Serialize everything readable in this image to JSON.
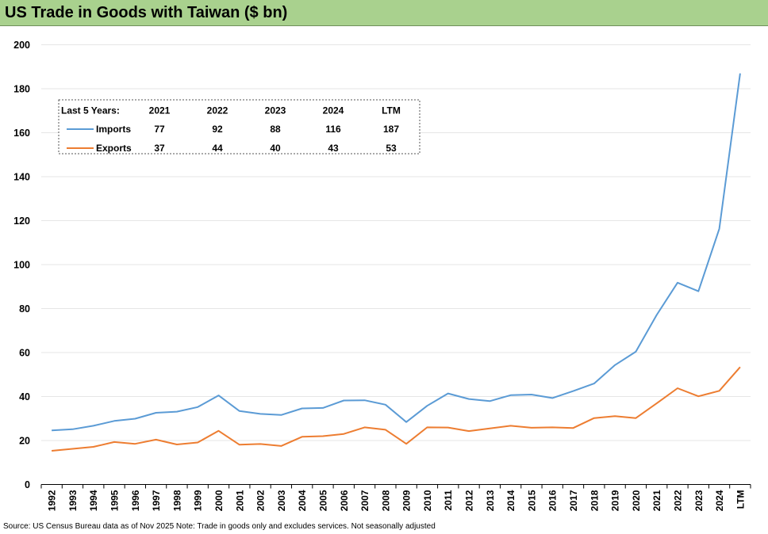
{
  "title": "US Trade in Goods with Taiwan ($ bn)",
  "source": "Source: US Census Bureau data as of Nov 2025 Note: Trade in goods only and excludes services. Not seasonally adjusted",
  "chart_data": {
    "type": "line",
    "title": "US Trade in Goods with Taiwan ($ bn)",
    "xlabel": "",
    "ylabel": "",
    "ylim": [
      0,
      200
    ],
    "yticks": [
      0,
      20,
      40,
      60,
      80,
      100,
      120,
      140,
      160,
      180,
      200
    ],
    "grid": true,
    "categories": [
      "1992",
      "1993",
      "1994",
      "1995",
      "1996",
      "1997",
      "1998",
      "1999",
      "2000",
      "2001",
      "2002",
      "2003",
      "2004",
      "2005",
      "2006",
      "2007",
      "2008",
      "2009",
      "2010",
      "2011",
      "2012",
      "2013",
      "2014",
      "2015",
      "2016",
      "2017",
      "2018",
      "2019",
      "2020",
      "2021",
      "2022",
      "2023",
      "2024",
      "LTM"
    ],
    "series": [
      {
        "name": "Imports",
        "color": "#5b9bd5",
        "values": [
          24.6,
          25.1,
          26.7,
          28.9,
          29.9,
          32.6,
          33.1,
          35.2,
          40.5,
          33.4,
          32.1,
          31.6,
          34.6,
          34.8,
          38.2,
          38.3,
          36.3,
          28.4,
          35.8,
          41.4,
          38.9,
          37.9,
          40.6,
          40.9,
          39.3,
          42.5,
          45.9,
          54.3,
          60.4,
          77.1,
          91.8,
          87.9,
          116.3,
          187.0
        ]
      },
      {
        "name": "Exports",
        "color": "#ed7d31",
        "values": [
          15.3,
          16.2,
          17.1,
          19.3,
          18.5,
          20.4,
          18.2,
          19.1,
          24.4,
          18.1,
          18.4,
          17.5,
          21.7,
          22.0,
          23.0,
          26.0,
          24.9,
          18.5,
          26.0,
          25.9,
          24.3,
          25.5,
          26.7,
          25.8,
          26.0,
          25.7,
          30.2,
          31.1,
          30.2,
          36.9,
          43.8,
          40.1,
          42.6,
          53.4
        ]
      }
    ],
    "legend_table": {
      "header": "Last 5 Years:",
      "columns": [
        "2021",
        "2022",
        "2023",
        "2024",
        "LTM"
      ],
      "rows": [
        {
          "name": "Imports",
          "color": "#5b9bd5",
          "values": [
            "77",
            "92",
            "88",
            "116",
            "187"
          ]
        },
        {
          "name": "Exports",
          "color": "#ed7d31",
          "values": [
            "37",
            "44",
            "40",
            "43",
            "53"
          ]
        }
      ],
      "placement": "top-left"
    }
  }
}
